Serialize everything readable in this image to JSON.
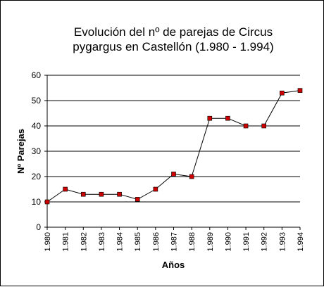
{
  "chart_data": {
    "type": "line",
    "title_line1": "Evolución del nº de parejas de Circus",
    "title_line2": "pygargus en Castellón (1.980 - 1.994)",
    "xlabel": "Años",
    "ylabel": "Nº Parejas",
    "categories": [
      "1.980",
      "1.981",
      "1.982",
      "1.983",
      "1.984",
      "1.985",
      "1.986",
      "1.987",
      "1.988",
      "1.989",
      "1.990",
      "1.991",
      "1.992",
      "1.993",
      "1.994"
    ],
    "values": [
      10,
      15,
      13,
      13,
      13,
      11,
      15,
      21,
      20,
      43,
      43,
      40,
      40,
      53,
      54
    ],
    "ylim": [
      0,
      60
    ],
    "yticks": [
      "0",
      "10",
      "20",
      "30",
      "40",
      "50",
      "60"
    ],
    "grid": true,
    "legend": "none",
    "colors": {
      "marker": "#cc0000",
      "line": "#000000",
      "grid": "#000000"
    }
  }
}
